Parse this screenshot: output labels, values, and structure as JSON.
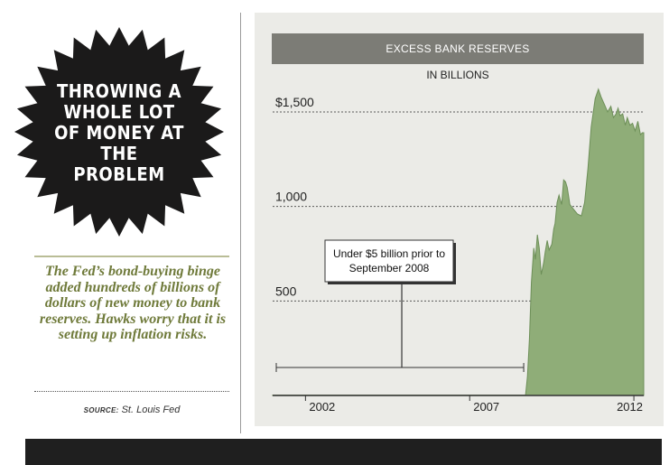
{
  "headline": {
    "title": "Throwing a whole lot of money at the problem"
  },
  "caption": "The Fed’s bond-buying binge added hundreds of billions of dollars of new money to bank reserves. Hawks worry that it is setting up inflation risks.",
  "source": {
    "label": "SOURCE:",
    "text": "St. Louis Fed"
  },
  "colors": {
    "burst": "#1b1a1a",
    "area_fill": "#8fad78",
    "area_line": "#6d8f58",
    "title_bar": "#7c7c76",
    "panel": "#ebebe7",
    "caption_text": "#6f7a3a"
  },
  "chart_data": {
    "type": "area",
    "title": "EXCESS BANK RESERVES",
    "subtitle": "IN BILLIONS",
    "x_ticks": [
      "2002",
      "2007",
      "2012"
    ],
    "y_ticks": [
      "$1,500",
      "1,000",
      "500"
    ],
    "ylim": [
      0,
      1600
    ],
    "grid": true,
    "annotation": {
      "text": "Under $5 billion prior to September 2008",
      "range": [
        "2001",
        "2008.7"
      ]
    },
    "series": [
      {
        "x": [
          2001.0,
          2008.7,
          2008.76,
          2008.82,
          2008.88,
          2008.95,
          2009.0,
          2009.06,
          2009.12,
          2009.18,
          2009.25,
          2009.3,
          2009.36,
          2009.42,
          2009.5,
          2009.56,
          2009.6,
          2009.66,
          2009.72,
          2009.8,
          2009.86,
          2009.92,
          2009.97,
          2010.05,
          2010.14,
          2010.28,
          2010.4,
          2010.5,
          2010.6,
          2010.7,
          2010.82,
          2010.92,
          2011.0,
          2011.1,
          2011.2,
          2011.3,
          2011.38,
          2011.46,
          2011.52,
          2011.58,
          2011.66,
          2011.74,
          2011.8,
          2011.88,
          2011.96,
          2012.04,
          2012.12,
          2012.2,
          2012.26,
          2012.3
        ],
        "values": [
          2,
          2,
          100,
          300,
          600,
          780,
          720,
          850,
          780,
          640,
          700,
          760,
          820,
          770,
          800,
          880,
          910,
          1020,
          1060,
          1010,
          1140,
          1130,
          1100,
          1010,
          990,
          960,
          950,
          1020,
          1200,
          1420,
          1570,
          1620,
          1580,
          1540,
          1500,
          1530,
          1470,
          1490,
          1520,
          1480,
          1490,
          1430,
          1470,
          1430,
          1440,
          1400,
          1450,
          1380,
          1390,
          1390
        ]
      }
    ]
  }
}
